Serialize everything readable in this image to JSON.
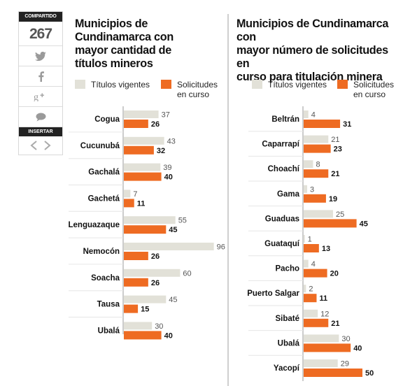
{
  "share": {
    "header": "COMPARTIDO",
    "count": "267",
    "buttons": [
      "twitter-icon",
      "facebook-icon",
      "google-plus-icon",
      "comment-icon"
    ],
    "insert_label": "INSERTAR"
  },
  "colors": {
    "vigentes": "#e2e1d8",
    "solicitudes": "#ee6b22",
    "axis": "#9a9a9a"
  },
  "legend": {
    "vigentes": "Títulos vigentes",
    "solicitudes_line1": "Solicitudes",
    "solicitudes_line2": "en curso"
  },
  "chart_data": [
    {
      "type": "bar",
      "orientation": "horizontal",
      "title_lines": [
        "Municipios de",
        "Cundinamarca con",
        "mayor cantidad de",
        "títulos mineros"
      ],
      "categories": [
        "Cogua",
        "Cucunubá",
        "Gachalá",
        "Gachetá",
        "Lenguazaque",
        "Nemocón",
        "Soacha",
        "Tausa",
        "Ubalá"
      ],
      "series": [
        {
          "name": "Títulos vigentes",
          "values": [
            37,
            43,
            39,
            7,
            55,
            96,
            60,
            45,
            30
          ]
        },
        {
          "name": "Solicitudes en curso",
          "values": [
            26,
            32,
            40,
            11,
            45,
            26,
            26,
            15,
            40
          ]
        }
      ]
    },
    {
      "type": "bar",
      "orientation": "horizontal",
      "title_lines": [
        "Municipios de Cundinamarca con",
        "mayor número de solicitudes en",
        "curso para  titulación minera"
      ],
      "categories": [
        "Beltrán",
        "Caparrapí",
        "Choachí",
        "Gama",
        "Guaduas",
        "Guataquí",
        "Pacho",
        "Puerto Salgar",
        "Sibaté",
        "Ubalá",
        "Yacopí"
      ],
      "series": [
        {
          "name": "Títulos vigentes",
          "values": [
            4,
            21,
            8,
            3,
            25,
            1,
            4,
            2,
            12,
            30,
            29
          ]
        },
        {
          "name": "Solicitudes en curso",
          "values": [
            31,
            23,
            21,
            19,
            45,
            13,
            20,
            11,
            21,
            40,
            50
          ]
        }
      ]
    }
  ]
}
